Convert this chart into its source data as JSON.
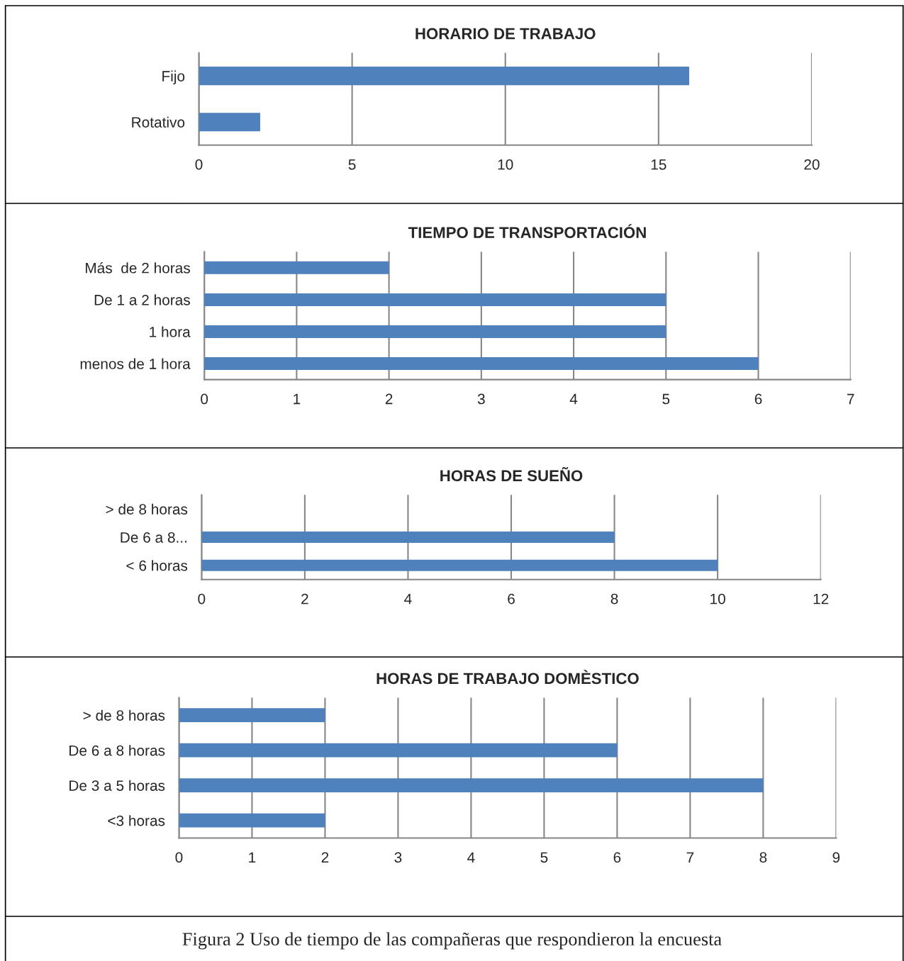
{
  "chart_data": [
    {
      "type": "bar",
      "orientation": "horizontal",
      "title": "HORARIO DE TRABAJO",
      "categories": [
        "Fijo",
        "Rotativo"
      ],
      "values": [
        16,
        2
      ],
      "color": "#4f81bd",
      "xlim": [
        0,
        20
      ],
      "xticks": [
        0,
        5,
        10,
        15,
        20
      ],
      "grid": "x"
    },
    {
      "type": "bar",
      "orientation": "horizontal",
      "title": "TIEMPO DE TRANSPORTACIÓN",
      "categories": [
        "Más  de 2 horas",
        "De 1 a 2 horas",
        "1 hora",
        "menos de 1 hora"
      ],
      "values": [
        2,
        5,
        5,
        6
      ],
      "color": "#4f81bd",
      "xlim": [
        0,
        7
      ],
      "xticks": [
        0,
        1,
        2,
        3,
        4,
        5,
        6,
        7
      ],
      "grid": "x"
    },
    {
      "type": "bar",
      "orientation": "horizontal",
      "title": "HORAS DE SUEÑO",
      "categories": [
        "> de 8 horas",
        "De 6 a 8...",
        "< 6 horas"
      ],
      "values": [
        0,
        8,
        10
      ],
      "color": "#4f81bd",
      "xlim": [
        0,
        12
      ],
      "xticks": [
        0,
        2,
        4,
        6,
        8,
        10,
        12
      ],
      "grid": "x"
    },
    {
      "type": "bar",
      "orientation": "horizontal",
      "title": "HORAS DE TRABAJO DOMÈSTICO",
      "categories": [
        "> de 8 horas",
        "De 6 a 8 horas",
        "De 3 a 5 horas",
        "<3 horas"
      ],
      "values": [
        2,
        6,
        8,
        2
      ],
      "color": "#4f81bd",
      "xlim": [
        0,
        9
      ],
      "xticks": [
        0,
        1,
        2,
        3,
        4,
        5,
        6,
        7,
        8,
        9
      ],
      "grid": "x",
      "annotations": [
        "Figura 2 Uso de tiempo de las compañeras que respondieron la encuesta"
      ]
    }
  ]
}
